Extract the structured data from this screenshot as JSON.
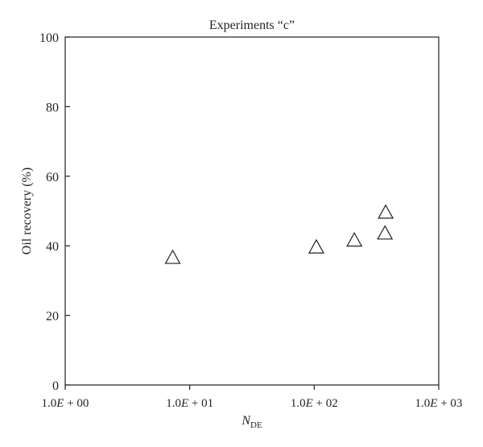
{
  "chart_data": {
    "type": "scatter",
    "title": "Experiments “c”",
    "xlabel": "N",
    "xlabel_sub": "DE",
    "ylabel": "Oil recovery (%)",
    "x_scale": "log",
    "xlim": [
      1,
      1000
    ],
    "ylim": [
      0,
      100
    ],
    "x_ticks": [
      1,
      10,
      100,
      1000
    ],
    "x_tick_labels": [
      {
        "mantissa": "1.0",
        "e": "E",
        "rest": " + 00"
      },
      {
        "mantissa": "1.0",
        "e": "E",
        "rest": " + 01"
      },
      {
        "mantissa": "1.0",
        "e": "E",
        "rest": " + 02"
      },
      {
        "mantissa": "1.0",
        "e": "E",
        "rest": " + 03"
      }
    ],
    "y_ticks": [
      0,
      20,
      40,
      60,
      80,
      100
    ],
    "y_tick_labels": [
      "0",
      "20",
      "40",
      "60",
      "80",
      "100"
    ],
    "marker": "open-triangle",
    "grid": false,
    "points": [
      {
        "x": 7.3,
        "y": 36.5
      },
      {
        "x": 104,
        "y": 39.5
      },
      {
        "x": 210,
        "y": 41.5
      },
      {
        "x": 370,
        "y": 43.5
      },
      {
        "x": 375,
        "y": 49.5
      }
    ],
    "colors": {
      "axis": "#231f20",
      "marker_stroke": "#231f20",
      "background": "#ffffff"
    }
  }
}
